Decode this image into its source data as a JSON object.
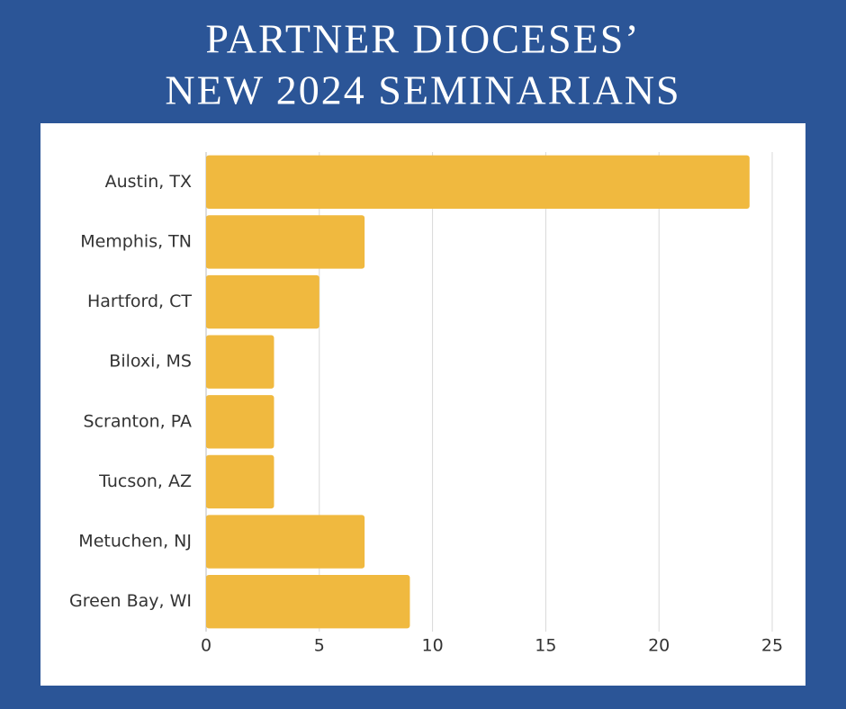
{
  "chart_data": {
    "type": "hbar",
    "title": [
      "PARTNER DIOCESES’",
      "NEW 2024 SEMINARIANS"
    ],
    "categories": [
      "Austin, TX",
      "Memphis, TN",
      "Hartford, CT",
      "Biloxi, MS",
      "Scranton, PA",
      "Tucson, AZ",
      "Metuchen, NJ",
      "Green Bay, WI"
    ],
    "values": [
      24,
      7,
      5,
      3,
      3,
      3,
      7,
      9
    ],
    "color": "#f0b93f",
    "xlim": [
      0,
      25
    ],
    "xticks": [
      0,
      5,
      10,
      15,
      20,
      25
    ],
    "grid": true
  }
}
